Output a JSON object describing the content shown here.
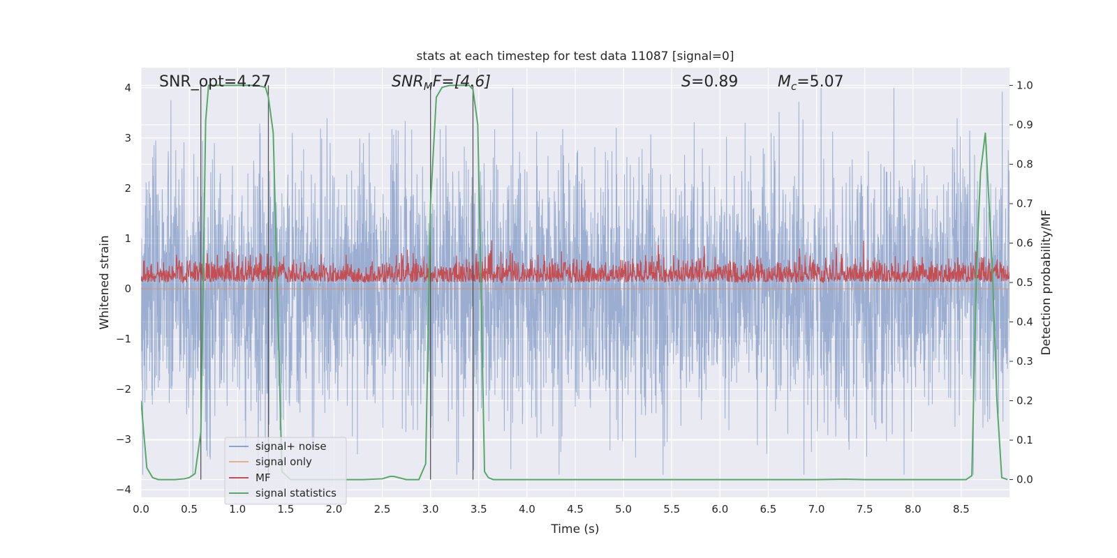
{
  "chart_data": {
    "type": "line",
    "title": "stats at each timestep for test data 11087 [signal=0]",
    "xlabel": "Time (s)",
    "ylabel": "Whitened strain",
    "ylabel_right": "Detection probability/MF",
    "xlim": [
      0,
      9
    ],
    "ylim": [
      -4.15,
      4.4
    ],
    "ylim_right": [
      -0.045,
      1.045
    ],
    "x_ticks": [
      "0.0",
      "0.5",
      "1.0",
      "1.5",
      "2.0",
      "2.5",
      "3.0",
      "3.5",
      "4.0",
      "4.5",
      "5.0",
      "5.5",
      "6.0",
      "6.5",
      "7.0",
      "7.5",
      "8.0",
      "8.5"
    ],
    "y_ticks": [
      "4",
      "3",
      "2",
      "1",
      "0",
      "−1",
      "−2",
      "−3",
      "−4"
    ],
    "y_ticks_right": [
      "1.0",
      "0.9",
      "0.8",
      "0.7",
      "0.6",
      "0.5",
      "0.4",
      "0.3",
      "0.2",
      "0.1",
      "0.0"
    ],
    "annotations": {
      "snr_opt": "SNR_opt=4.27",
      "snr_mf_main": "SNR",
      "snr_mf_sub": "M",
      "snr_mf_rest": "F=[4.6]",
      "s_main": "S",
      "s_rest": "=0.89",
      "mc_main": "M",
      "mc_sub": "c",
      "mc_rest": "=5.07"
    },
    "legend": {
      "position": "lower-left",
      "entries": [
        "signal+ noise",
        "signal only",
        "MF",
        "signal statistics"
      ]
    },
    "colors": {
      "background": "#eaeaf2",
      "grid": "#ffffff",
      "noise": "#4c72b0",
      "signal_only": "#dd8452",
      "mf": "#c44e52",
      "statistics": "#55a868",
      "window_lines": "#555555"
    },
    "series": [
      {
        "name": "signal+ noise",
        "axis": "left",
        "style": "dense noise trace",
        "y_range": [
          -3.7,
          4.0
        ]
      },
      {
        "name": "signal only",
        "axis": "left",
        "values": "flat at 0"
      },
      {
        "name": "MF",
        "axis": "right",
        "style": "dense noise trace",
        "y_range": [
          0.5,
          0.63
        ]
      },
      {
        "name": "signal statistics",
        "axis": "right",
        "x": [
          0.0,
          0.06,
          0.12,
          0.18,
          0.25,
          0.35,
          0.45,
          0.5,
          0.56,
          0.62,
          0.67,
          0.7,
          0.76,
          0.82,
          0.9,
          1.0,
          1.1,
          1.2,
          1.29,
          1.32,
          1.37,
          1.41,
          1.46,
          1.55,
          1.7,
          2.0,
          2.3,
          2.5,
          2.58,
          2.62,
          2.7,
          2.75,
          2.82,
          2.88,
          2.95,
          3.0,
          3.06,
          3.12,
          3.2,
          3.3,
          3.4,
          3.44,
          3.49,
          3.56,
          3.6,
          3.65,
          4.0,
          5.0,
          6.0,
          7.0,
          7.3,
          7.5,
          8.0,
          8.4,
          8.55,
          8.61,
          8.66,
          8.7,
          8.75,
          8.82,
          8.87,
          8.92,
          8.98
        ],
        "values": [
          0.2,
          0.03,
          0.005,
          0.0,
          0.0,
          0.0,
          0.002,
          0.005,
          0.015,
          0.12,
          0.91,
          1.0,
          1.0,
          1.0,
          1.0,
          1.0,
          1.0,
          1.0,
          0.995,
          0.97,
          0.88,
          0.5,
          0.02,
          0.0,
          0.0,
          0.0,
          0.0,
          0.002,
          0.008,
          0.008,
          0.003,
          0.0,
          0.0,
          0.0,
          0.04,
          0.7,
          0.97,
          0.995,
          1.0,
          1.0,
          1.0,
          0.99,
          0.9,
          0.02,
          0.005,
          0.0,
          0.0,
          0.0,
          0.0,
          0.0,
          0.001,
          0.0,
          0.0,
          0.0,
          0.0,
          0.01,
          0.55,
          0.78,
          0.88,
          0.55,
          0.2,
          0.005,
          0.0
        ]
      }
    ],
    "vertical_lines_x": [
      0.62,
      1.32,
      3.0,
      3.44
    ]
  }
}
